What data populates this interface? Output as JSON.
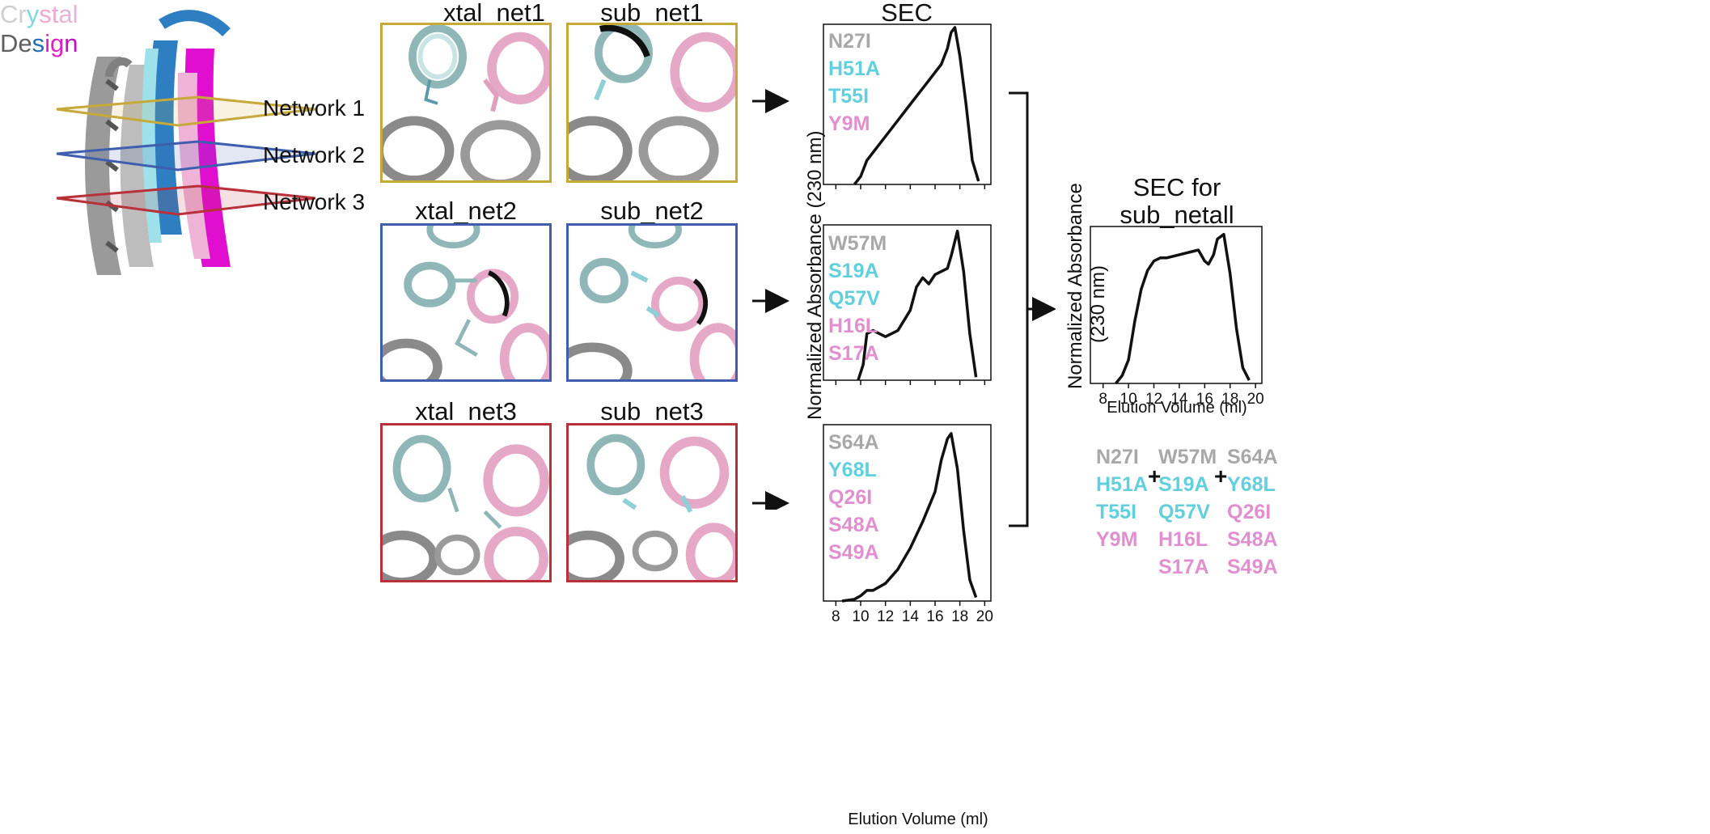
{
  "legend": {
    "crystal": {
      "parts": [
        "Cr",
        "y",
        "st",
        "al"
      ],
      "colors": [
        "#cfcfcf",
        "#7fd8e0",
        "#f1a7d3",
        "#e6b3d9"
      ]
    },
    "design": {
      "parts": [
        "De",
        "s",
        "ig",
        "n"
      ],
      "colors": [
        "#606060",
        "#1e6fb4",
        "#e020c8",
        "#c010c0"
      ]
    }
  },
  "network_labels": [
    "Network 1",
    "Network 2",
    "Network 3"
  ],
  "network_colors": [
    "#c7a93a",
    "#3f5fae",
    "#b8303a"
  ],
  "panels": {
    "xtal_net1": "xtal_net1",
    "sub_net1": "sub_net1",
    "xtal_net2": "xtal_net2",
    "sub_net2": "sub_net2",
    "xtal_net3": "xtal_net3",
    "sub_net3": "sub_net3"
  },
  "sec_title": "SEC",
  "sec_all_title_line1": "SEC for",
  "sec_all_title_line2": "sub_netall",
  "ylabel_main": "Normalized Absorbance (230 nm)",
  "ylabel_all_line1": "Normalized Absorbance",
  "ylabel_all_line2": "(230 nm)",
  "xlabel": "Elution Volume (ml)",
  "mutations": {
    "net1": [
      {
        "text": "N27I",
        "color": "#a8a8a8"
      },
      {
        "text": "H51A",
        "color": "#62cfdc"
      },
      {
        "text": "T55I",
        "color": "#62cfdc"
      },
      {
        "text": "Y9M",
        "color": "#e08fcf"
      }
    ],
    "net2": [
      {
        "text": "W57M",
        "color": "#a8a8a8"
      },
      {
        "text": "S19A",
        "color": "#62cfdc"
      },
      {
        "text": "Q57V",
        "color": "#62cfdc"
      },
      {
        "text": "H16L",
        "color": "#e08fcf"
      },
      {
        "text": "S17A",
        "color": "#e08fcf"
      }
    ],
    "net3": [
      {
        "text": "S64A",
        "color": "#a8a8a8"
      },
      {
        "text": "Y68L",
        "color": "#62cfdc"
      },
      {
        "text": "Q26I",
        "color": "#e08fcf"
      },
      {
        "text": "S48A",
        "color": "#e08fcf"
      },
      {
        "text": "S49A",
        "color": "#e08fcf"
      }
    ]
  },
  "plus_sign": "+",
  "chart_data": [
    {
      "type": "line",
      "name": "SEC net1",
      "x": [
        9.5,
        10,
        10.5,
        11,
        12,
        13,
        14,
        15,
        16,
        16.5,
        17,
        17.3,
        17.6,
        18,
        18.5,
        19,
        19.5
      ],
      "y": [
        0.0,
        0.05,
        0.15,
        0.2,
        0.3,
        0.4,
        0.5,
        0.6,
        0.7,
        0.75,
        0.85,
        0.95,
        0.98,
        0.8,
        0.5,
        0.15,
        0.02
      ]
    },
    {
      "type": "line",
      "name": "SEC net2",
      "x": [
        9.8,
        10.2,
        10.5,
        11,
        11.5,
        12,
        13,
        14,
        14.5,
        15,
        15.5,
        16,
        16.5,
        17,
        17.3,
        17.8,
        18.3,
        18.8,
        19.3
      ],
      "y": [
        0.0,
        0.1,
        0.3,
        0.32,
        0.3,
        0.28,
        0.32,
        0.45,
        0.6,
        0.66,
        0.62,
        0.68,
        0.7,
        0.72,
        0.8,
        0.96,
        0.7,
        0.3,
        0.02
      ]
    },
    {
      "type": "line",
      "name": "SEC net3",
      "x": [
        8.5,
        9.5,
        10,
        10.5,
        11,
        12,
        13,
        14,
        15,
        16,
        16.5,
        17,
        17.3,
        17.8,
        18.3,
        18.8,
        19.3
      ],
      "y": [
        0.0,
        0.01,
        0.03,
        0.06,
        0.06,
        0.1,
        0.18,
        0.3,
        0.45,
        0.62,
        0.8,
        0.92,
        0.95,
        0.75,
        0.4,
        0.12,
        0.02
      ]
    },
    {
      "type": "line",
      "name": "SEC sub_netall",
      "x": [
        9,
        9.5,
        10,
        10.5,
        11,
        11.5,
        12,
        12.5,
        13,
        14,
        15,
        15.5,
        16,
        16.3,
        16.7,
        17,
        17.5,
        18,
        18.5,
        19,
        19.5
      ],
      "y": [
        0.0,
        0.05,
        0.15,
        0.4,
        0.6,
        0.72,
        0.78,
        0.8,
        0.8,
        0.82,
        0.84,
        0.85,
        0.78,
        0.76,
        0.82,
        0.92,
        0.95,
        0.7,
        0.35,
        0.1,
        0.02
      ]
    }
  ],
  "axis": {
    "xlim": [
      7,
      20.5
    ],
    "ticks": [
      8,
      10,
      12,
      14,
      16,
      18,
      20
    ],
    "tick_labels": [
      "8",
      "10",
      "12",
      "14",
      "16",
      "18",
      "20"
    ]
  }
}
